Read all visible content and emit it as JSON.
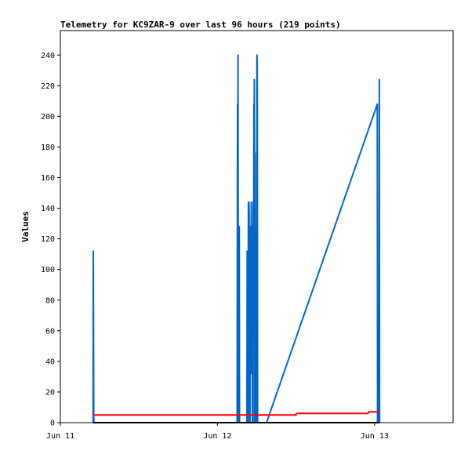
{
  "chart_data": {
    "type": "line",
    "title": "Telemetry for KC9ZAR-9 over last 96 hours (219 points)",
    "xlabel": "",
    "ylabel": "Values",
    "xlim": [
      "2024-06-11T00:00",
      "2024-06-13T12:00"
    ],
    "ylim": [
      0,
      256
    ],
    "x_ticks": [
      {
        "label": "Jun 11",
        "value": "2024-06-11T00:00"
      },
      {
        "label": "Jun 12",
        "value": "2024-06-12T00:00"
      },
      {
        "label": "Jun 13",
        "value": "2024-06-13T00:00"
      }
    ],
    "y_ticks": [
      0,
      20,
      40,
      60,
      80,
      100,
      120,
      140,
      160,
      180,
      200,
      220,
      240
    ],
    "grid": false,
    "series": [
      {
        "color": "#0066cc",
        "points": [
          [
            "2024-06-11T05:00",
            0
          ],
          [
            "2024-06-11T05:02",
            112
          ],
          [
            "2024-06-11T05:04",
            56
          ],
          [
            "2024-06-11T05:06",
            0
          ],
          [
            "2024-06-12T03:00",
            0
          ],
          [
            "2024-06-12T03:02",
            88
          ],
          [
            "2024-06-12T03:04",
            208
          ],
          [
            "2024-06-12T03:06",
            88
          ],
          [
            "2024-06-12T03:08",
            240
          ],
          [
            "2024-06-12T03:10",
            120
          ],
          [
            "2024-06-12T03:12",
            0
          ],
          [
            "2024-06-12T03:18",
            0
          ],
          [
            "2024-06-12T03:20",
            128
          ],
          [
            "2024-06-12T03:22",
            0
          ],
          [
            "2024-06-12T04:30",
            0
          ],
          [
            "2024-06-12T04:32",
            112
          ],
          [
            "2024-06-12T04:34",
            56
          ],
          [
            "2024-06-12T04:36",
            0
          ],
          [
            "2024-06-12T04:40",
            0
          ],
          [
            "2024-06-12T04:42",
            64
          ],
          [
            "2024-06-12T04:44",
            144
          ],
          [
            "2024-06-12T04:46",
            72
          ],
          [
            "2024-06-12T04:48",
            144
          ],
          [
            "2024-06-12T04:50",
            136
          ],
          [
            "2024-06-12T04:52",
            0
          ],
          [
            "2024-06-12T04:58",
            0
          ],
          [
            "2024-06-12T05:00",
            128
          ],
          [
            "2024-06-12T05:02",
            112
          ],
          [
            "2024-06-12T05:04",
            96
          ],
          [
            "2024-06-12T05:06",
            32
          ],
          [
            "2024-06-12T05:08",
            88
          ],
          [
            "2024-06-12T05:10",
            144
          ],
          [
            "2024-06-12T05:12",
            120
          ],
          [
            "2024-06-12T05:14",
            104
          ],
          [
            "2024-06-12T05:16",
            72
          ],
          [
            "2024-06-12T05:18",
            128
          ],
          [
            "2024-06-12T05:20",
            0
          ],
          [
            "2024-06-12T05:26",
            0
          ],
          [
            "2024-06-12T05:28",
            144
          ],
          [
            "2024-06-12T05:30",
            96
          ],
          [
            "2024-06-12T05:32",
            88
          ],
          [
            "2024-06-12T05:34",
            208
          ],
          [
            "2024-06-12T05:36",
            120
          ],
          [
            "2024-06-12T05:38",
            224
          ],
          [
            "2024-06-12T05:40",
            176
          ],
          [
            "2024-06-12T05:42",
            0
          ],
          [
            "2024-06-12T05:44",
            176
          ],
          [
            "2024-06-12T05:46",
            120
          ],
          [
            "2024-06-12T05:48",
            32
          ],
          [
            "2024-06-12T05:50",
            128
          ],
          [
            "2024-06-12T05:52",
            0
          ],
          [
            "2024-06-12T06:00",
            0
          ],
          [
            "2024-06-12T06:02",
            240
          ],
          [
            "2024-06-12T06:04",
            232
          ],
          [
            "2024-06-12T06:06",
            176
          ],
          [
            "2024-06-12T06:08",
            0
          ],
          [
            "2024-06-12T07:30",
            0
          ],
          [
            "2024-06-13T00:25",
            208
          ],
          [
            "2024-06-13T00:27",
            0
          ],
          [
            "2024-06-13T00:40",
            0
          ],
          [
            "2024-06-13T00:42",
            112
          ],
          [
            "2024-06-13T00:44",
            224
          ],
          [
            "2024-06-13T00:46",
            0
          ]
        ]
      },
      {
        "color": "#ff0000",
        "points": [
          [
            "2024-06-11T05:00",
            5
          ],
          [
            "2024-06-12T12:00",
            5
          ],
          [
            "2024-06-12T12:05",
            6
          ],
          [
            "2024-06-12T23:00",
            6
          ],
          [
            "2024-06-12T23:05",
            7
          ],
          [
            "2024-06-13T00:46",
            7
          ]
        ]
      },
      {
        "color": "#000000",
        "points": [
          [
            "2024-06-11T05:00",
            0
          ],
          [
            "2024-06-13T00:46",
            0
          ]
        ]
      }
    ]
  }
}
